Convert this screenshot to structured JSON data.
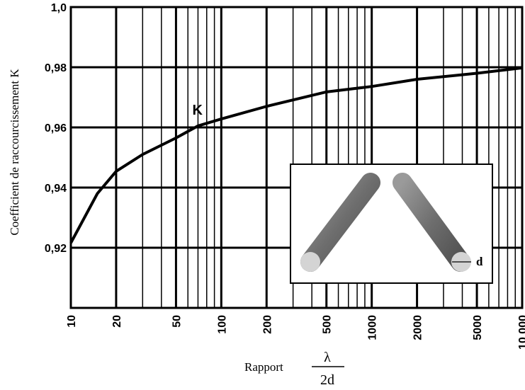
{
  "chart_data": {
    "type": "line",
    "ylabel": "Coefficient de raccourcissement K",
    "xlabel": "Rapport",
    "xlabel_fraction": {
      "numerator": "λ",
      "denominator": "2d"
    },
    "curve_label": "K",
    "inset_label": "d",
    "log_x": true,
    "grid": true,
    "color": "#000000",
    "x": [
      10,
      15,
      20,
      30,
      50,
      70,
      100,
      200,
      500,
      1000,
      2000,
      5000,
      10000
    ],
    "values": [
      0.9216,
      0.938,
      0.9454,
      0.951,
      0.9565,
      0.9605,
      0.9628,
      0.967,
      0.9718,
      0.9736,
      0.976,
      0.978,
      0.9798
    ],
    "xlim": [
      10,
      10000
    ],
    "ylim": [
      0.9,
      1.0
    ],
    "xticks": [
      10,
      20,
      50,
      100,
      200,
      500,
      1000,
      2000,
      5000,
      {
        "value": 10000,
        "label": "10 000"
      }
    ],
    "xminorticks": [
      30,
      40,
      60,
      70,
      80,
      90,
      300,
      400,
      600,
      700,
      800,
      900,
      3000,
      4000,
      6000,
      7000,
      8000,
      9000
    ],
    "yticks": [
      {
        "value": 1.0,
        "label": "1,0"
      },
      {
        "value": 0.98,
        "label": "0,98"
      },
      {
        "value": 0.96,
        "label": "0,96"
      },
      {
        "value": 0.94,
        "label": "0,94"
      },
      {
        "value": 0.92,
        "label": "0,92"
      }
    ]
  }
}
